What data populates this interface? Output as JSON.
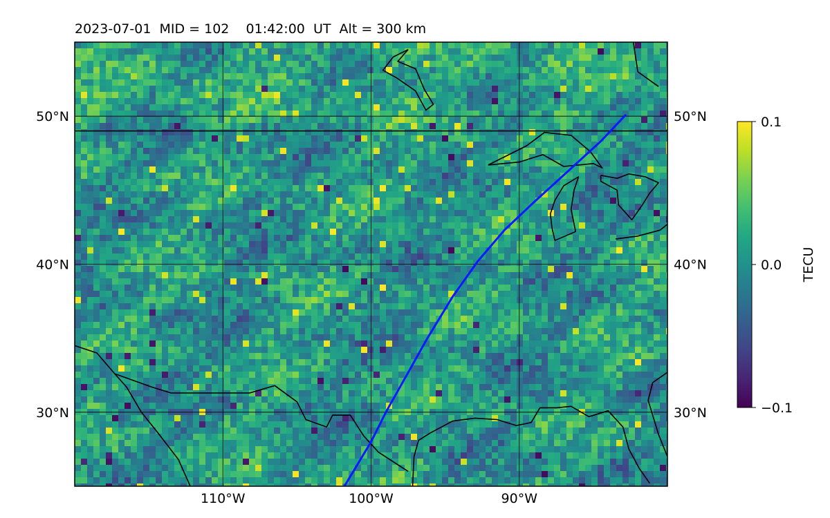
{
  "header": {
    "title": "2023-07-01  MID = 102    01:42:00  UT  Alt = 300 km"
  },
  "map": {
    "lon_range": [
      -120,
      -80
    ],
    "lat_range": [
      25,
      55
    ],
    "lat_ticks": [
      {
        "value": 30,
        "label": "30°N"
      },
      {
        "value": 40,
        "label": "40°N"
      },
      {
        "value": 50,
        "label": "50°N"
      }
    ],
    "lon_ticks": [
      {
        "value": -110,
        "label": "110°W"
      },
      {
        "value": -100,
        "label": "100°W"
      },
      {
        "value": -90,
        "label": "90°W"
      }
    ],
    "gridlines": true,
    "grid_color": "#000000",
    "coastline_color": "#000000",
    "track_color": "#0a19ff",
    "track": [
      [
        -101.8,
        25.0
      ],
      [
        -101.2,
        26.0
      ],
      [
        -100.0,
        28.0
      ],
      [
        -99.0,
        30.0
      ],
      [
        -97.6,
        32.5
      ],
      [
        -96.2,
        35.0
      ],
      [
        -94.5,
        37.8
      ],
      [
        -92.8,
        40.2
      ],
      [
        -91.0,
        42.3
      ],
      [
        -89.0,
        44.2
      ],
      [
        -86.8,
        46.2
      ],
      [
        -84.5,
        48.3
      ],
      [
        -82.8,
        50.1
      ]
    ],
    "coastlines": [
      [
        [
          -120,
          49
        ],
        [
          -80,
          49
        ]
      ],
      [
        [
          -120,
          34.5
        ],
        [
          -118.5,
          34.0
        ],
        [
          -117.3,
          32.6
        ],
        [
          -116.5,
          31.7
        ],
        [
          -115.5,
          30.0
        ],
        [
          -114.3,
          28.5
        ],
        [
          -113.0,
          26.8
        ],
        [
          -112.2,
          25.0
        ]
      ],
      [
        [
          -117.3,
          32.6
        ],
        [
          -114.8,
          31.7
        ],
        [
          -113.5,
          31.3
        ],
        [
          -111.0,
          31.3
        ],
        [
          -108.2,
          31.3
        ],
        [
          -106.5,
          31.8
        ],
        [
          -105.0,
          30.7
        ],
        [
          -104.4,
          29.5
        ],
        [
          -103.0,
          29.0
        ],
        [
          -102.6,
          29.8
        ],
        [
          -101.4,
          29.8
        ],
        [
          -100.5,
          28.4
        ],
        [
          -99.5,
          27.3
        ],
        [
          -97.5,
          26.0
        ]
      ],
      [
        [
          -97.2,
          25.0
        ],
        [
          -97.1,
          27.0
        ],
        [
          -96.8,
          28.1
        ],
        [
          -96.0,
          28.6
        ],
        [
          -94.5,
          29.4
        ],
        [
          -93.0,
          29.6
        ],
        [
          -91.5,
          29.5
        ],
        [
          -90.2,
          29.1
        ],
        [
          -89.2,
          29.3
        ],
        [
          -88.6,
          30.3
        ],
        [
          -87.5,
          30.3
        ],
        [
          -86.5,
          30.4
        ],
        [
          -85.3,
          29.7
        ],
        [
          -84.0,
          30.1
        ],
        [
          -83.0,
          29.0
        ],
        [
          -82.6,
          27.5
        ],
        [
          -81.9,
          26.2
        ],
        [
          -81.2,
          25.2
        ]
      ],
      [
        [
          -80.0,
          27.0
        ],
        [
          -80.6,
          28.5
        ],
        [
          -81.3,
          30.8
        ],
        [
          -81.0,
          32.0
        ],
        [
          -80.0,
          32.7
        ]
      ],
      [
        [
          -87.6,
          41.6
        ],
        [
          -87.8,
          42.5
        ],
        [
          -87.9,
          43.4
        ],
        [
          -87.6,
          44.3
        ],
        [
          -87.0,
          45.3
        ],
        [
          -86.0,
          45.9
        ],
        [
          -86.3,
          45.0
        ],
        [
          -86.5,
          43.7
        ],
        [
          -86.2,
          42.2
        ],
        [
          -87.6,
          41.6
        ]
      ],
      [
        [
          -92.1,
          46.7
        ],
        [
          -90.0,
          46.9
        ],
        [
          -88.4,
          47.4
        ],
        [
          -87.0,
          46.6
        ],
        [
          -85.0,
          46.8
        ],
        [
          -84.4,
          46.5
        ],
        [
          -85.2,
          47.6
        ],
        [
          -86.5,
          48.7
        ],
        [
          -88.3,
          48.9
        ],
        [
          -89.5,
          48.0
        ],
        [
          -92.1,
          46.7
        ]
      ],
      [
        [
          -84.5,
          46.0
        ],
        [
          -83.4,
          45.8
        ],
        [
          -82.6,
          46.1
        ],
        [
          -81.5,
          45.9
        ],
        [
          -80.6,
          45.5
        ],
        [
          -81.2,
          44.8
        ],
        [
          -81.7,
          44.0
        ],
        [
          -82.4,
          43.0
        ],
        [
          -83.3,
          44.0
        ],
        [
          -83.4,
          45.0
        ],
        [
          -84.5,
          45.6
        ],
        [
          -84.5,
          46.0
        ]
      ],
      [
        [
          -83.5,
          41.7
        ],
        [
          -82.0,
          41.9
        ],
        [
          -80.5,
          42.3
        ],
        [
          -80.0,
          42.7
        ]
      ],
      [
        [
          -97.5,
          54.5
        ],
        [
          -98.2,
          53.7
        ],
        [
          -97.0,
          53.2
        ],
        [
          -96.4,
          51.8
        ],
        [
          -95.8,
          50.8
        ],
        [
          -96.3,
          50.4
        ],
        [
          -97.0,
          51.7
        ],
        [
          -98.3,
          52.6
        ],
        [
          -99.2,
          53.1
        ],
        [
          -98.5,
          54.0
        ],
        [
          -97.5,
          54.5
        ]
      ],
      [
        [
          -82.3,
          55
        ],
        [
          -82.0,
          53.0
        ],
        [
          -80.6,
          52.0
        ]
      ]
    ]
  },
  "colorbar": {
    "label": "TECU",
    "vmin": -0.1,
    "vmax": 0.1,
    "colormap": "viridis",
    "ticks": [
      {
        "value": 0.1,
        "label": "0.1"
      },
      {
        "value": 0.0,
        "label": "0.0"
      },
      {
        "value": -0.1,
        "label": "−0.1"
      }
    ]
  }
}
